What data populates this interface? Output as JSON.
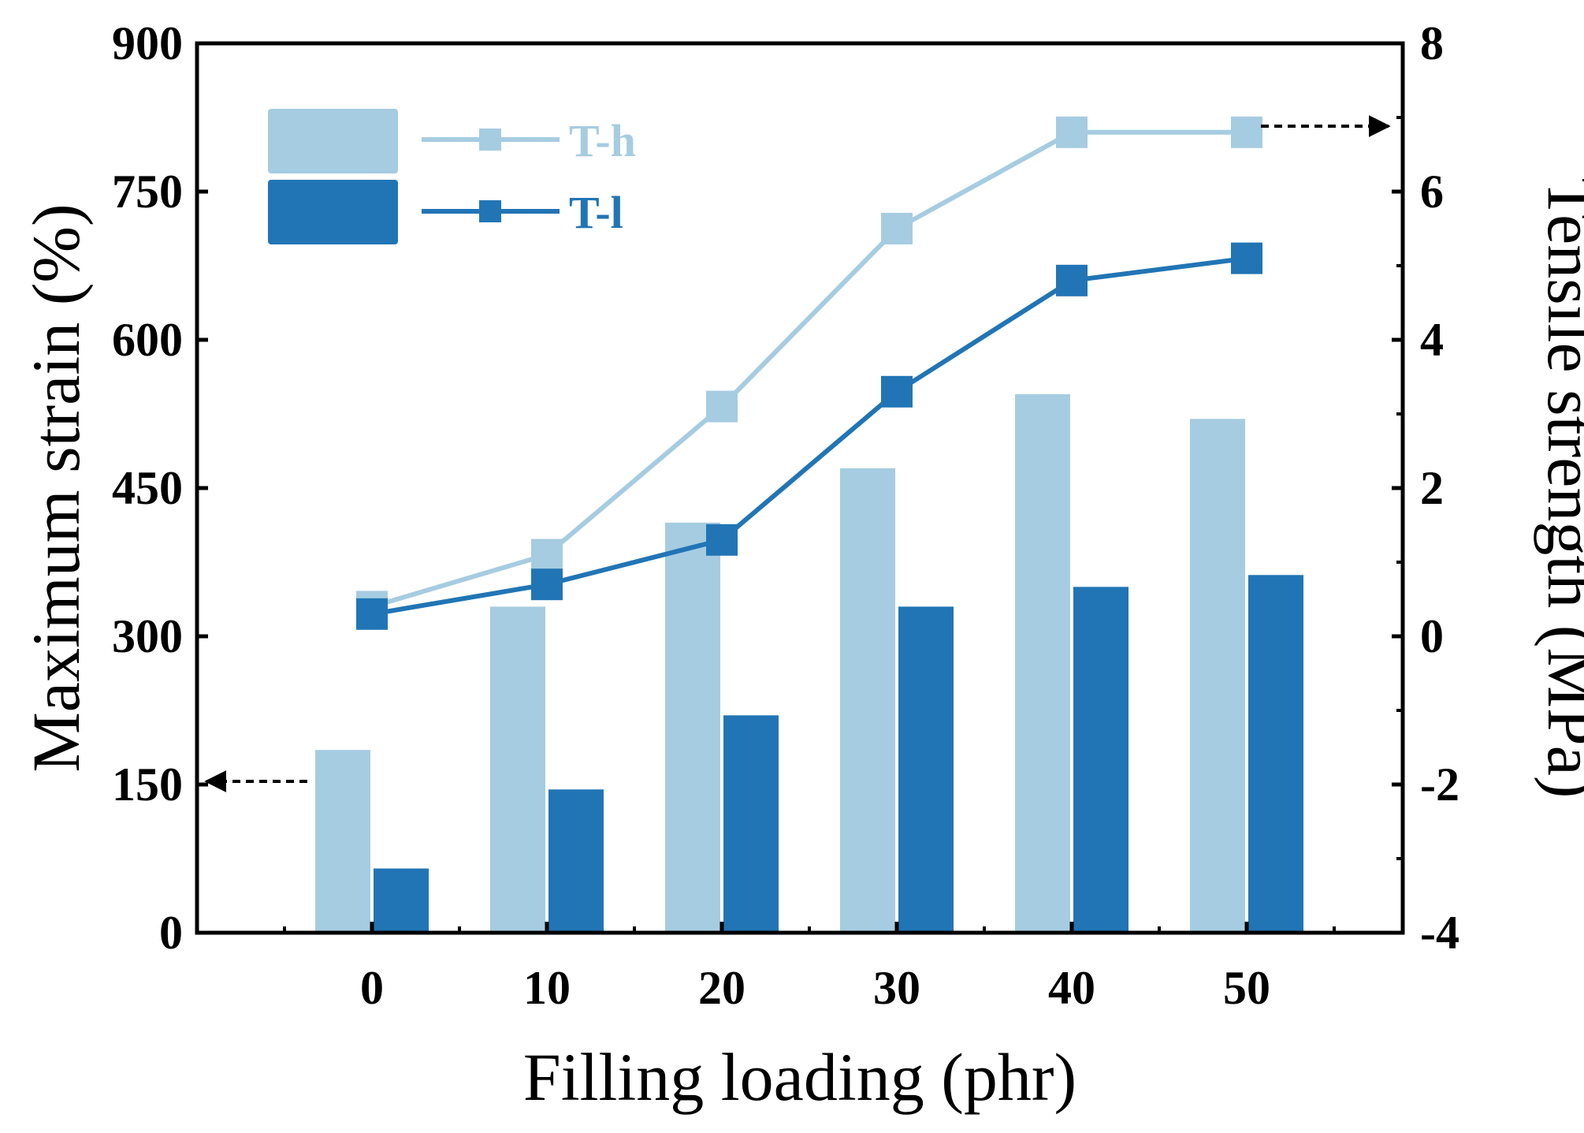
{
  "chart_data": {
    "type": "bar+line",
    "xlabel": "Filling loading (phr)",
    "ylabel_left": "Maximum strain (%)",
    "ylabel_right": "Tensile strength (MPa)",
    "categories": [
      "0",
      "10",
      "20",
      "30",
      "40",
      "50"
    ],
    "y_left_ticks": [
      "0",
      "150",
      "300",
      "450",
      "600",
      "750",
      "900"
    ],
    "y_right_ticks": [
      "-4",
      "-2",
      "0",
      "2",
      "4",
      "6",
      "8"
    ],
    "ylim_left": [
      0,
      900
    ],
    "ylim_right": [
      -4,
      8
    ],
    "bar_series": [
      {
        "name": "T-h",
        "color": "#a6cce1",
        "values": [
          185,
          330,
          415,
          470,
          545,
          520
        ]
      },
      {
        "name": "T-l",
        "color": "#2175b5",
        "values": [
          65,
          145,
          220,
          330,
          350,
          362
        ]
      }
    ],
    "line_series": [
      {
        "name": "T-h",
        "color": "#a6cce1",
        "values": [
          0.4,
          1.1,
          3.1,
          5.5,
          6.8,
          6.8
        ]
      },
      {
        "name": "T-l",
        "color": "#2175b5",
        "values": [
          0.3,
          0.7,
          1.3,
          3.3,
          4.8,
          5.1
        ]
      }
    ],
    "legend": {
      "position": "top-left",
      "entries": [
        "T-h",
        "T-l"
      ]
    },
    "annotations": [
      {
        "type": "arrow",
        "points_to": "left-axis",
        "from_category": "0"
      },
      {
        "type": "arrow",
        "points_to": "right-axis",
        "from_category": "50"
      }
    ]
  }
}
